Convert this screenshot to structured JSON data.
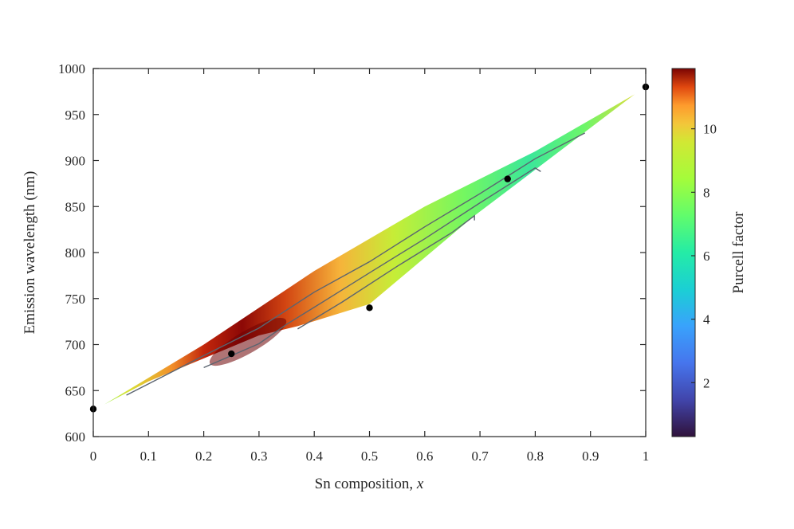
{
  "chart_data": {
    "type": "heatmap",
    "title": "",
    "xlabel": "Sn composition, ",
    "xlabel_var": "x",
    "ylabel": "Emission wavelength (nm)",
    "xlim": [
      0,
      1
    ],
    "ylim": [
      600,
      1000
    ],
    "xticks": [
      "0",
      "0.1",
      "0.2",
      "0.3",
      "0.4",
      "0.5",
      "0.6",
      "0.7",
      "0.8",
      "0.9",
      "1"
    ],
    "yticks": [
      "600",
      "650",
      "700",
      "750",
      "800",
      "850",
      "900",
      "950",
      "1000"
    ],
    "grid": false,
    "colorbar": {
      "label": "Purcell factor",
      "range": [
        0.3,
        11.9
      ],
      "ticks": [
        "2",
        "4",
        "6",
        "8",
        "10"
      ],
      "colormap": "turbo"
    },
    "region": {
      "upper_edge": [
        [
          0.02,
          635
        ],
        [
          0.2,
          700
        ],
        [
          0.4,
          780
        ],
        [
          0.6,
          850
        ],
        [
          0.8,
          910
        ],
        [
          0.98,
          972
        ]
      ],
      "lower_edge": [
        [
          0.02,
          635
        ],
        [
          0.1,
          660
        ],
        [
          0.2,
          685
        ],
        [
          0.3,
          710
        ],
        [
          0.37,
          720
        ],
        [
          0.5,
          744
        ],
        [
          0.69,
          840
        ],
        [
          0.98,
          972
        ]
      ]
    },
    "peak": {
      "x": 0.28,
      "y": 703,
      "value": 11.9
    },
    "contour_lines": [
      [
        [
          0.06,
          645
        ],
        [
          0.2,
          688
        ],
        [
          0.3,
          718
        ],
        [
          0.4,
          757
        ],
        [
          0.5,
          790
        ],
        [
          0.6,
          828
        ],
        [
          0.7,
          864
        ],
        [
          0.8,
          902
        ],
        [
          0.89,
          930
        ]
      ],
      [
        [
          0.2,
          675
        ],
        [
          0.3,
          701
        ],
        [
          0.35,
          722
        ],
        [
          0.42,
          748
        ],
        [
          0.5,
          778
        ],
        [
          0.6,
          815
        ],
        [
          0.7,
          854
        ],
        [
          0.8,
          892
        ],
        [
          0.81,
          888
        ]
      ],
      [
        [
          0.37,
          717
        ],
        [
          0.45,
          746
        ],
        [
          0.55,
          785
        ],
        [
          0.65,
          822
        ],
        [
          0.69,
          840
        ],
        [
          0.69,
          835
        ]
      ]
    ],
    "points": [
      {
        "x": 0,
        "y": 630
      },
      {
        "x": 0.25,
        "y": 690
      },
      {
        "x": 0.5,
        "y": 740
      },
      {
        "x": 0.75,
        "y": 880
      },
      {
        "x": 1,
        "y": 980
      }
    ]
  }
}
